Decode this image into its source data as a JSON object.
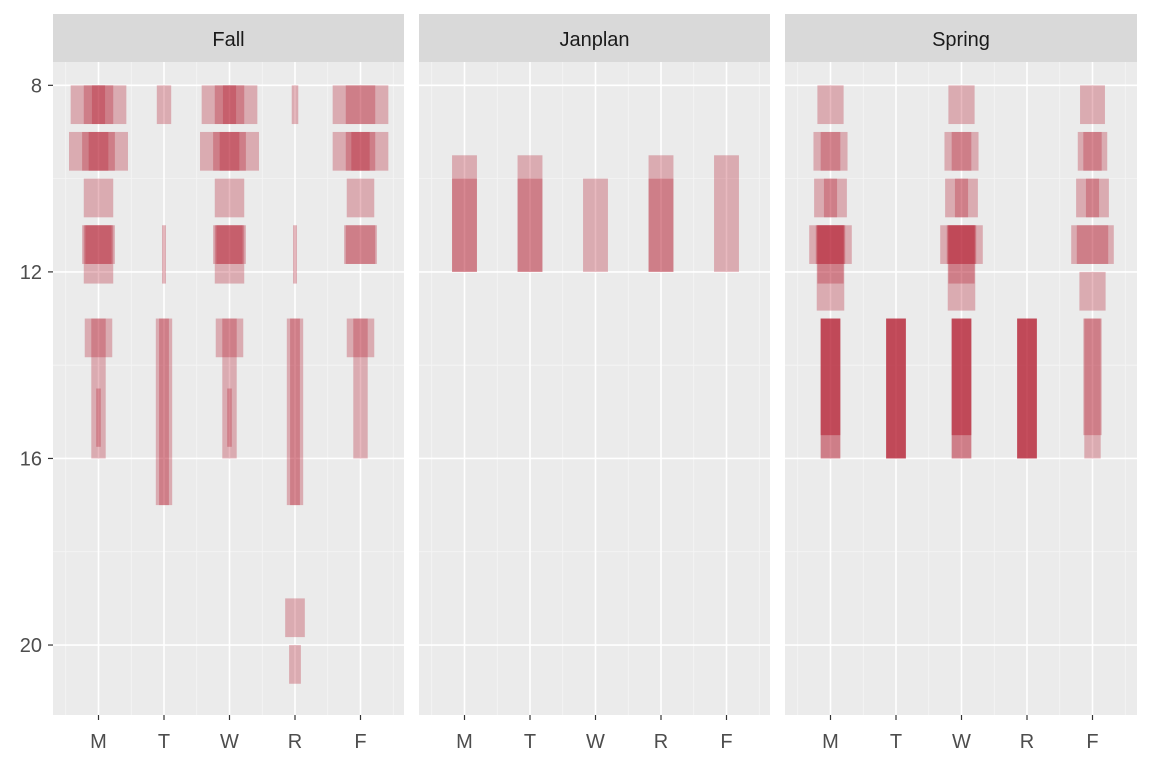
{
  "chart_data": {
    "type": "bar",
    "subtype": "faceted-floating-bar",
    "title": "",
    "xlabel": "",
    "ylabel": "",
    "facets": [
      "Fall",
      "Janplan",
      "Spring"
    ],
    "x_categories": [
      "M",
      "T",
      "W",
      "R",
      "F"
    ],
    "y_ticks": [
      8,
      12,
      16,
      20
    ],
    "y_range": [
      7.5,
      21.5
    ],
    "y_reversed": true,
    "grid": true,
    "legend": "none",
    "bar_color": "#b2182b",
    "bar_opacity": 0.3,
    "panel_background": "#ebebeb",
    "strip_background": "#d9d9d9",
    "series": [
      {
        "facet": "Fall",
        "blocks": [
          {
            "day": "M",
            "start": 8,
            "end": 8.83,
            "width": 0.85
          },
          {
            "day": "M",
            "start": 8,
            "end": 8.83,
            "width": 0.45
          },
          {
            "day": "M",
            "start": 8,
            "end": 8.83,
            "width": 0.2
          },
          {
            "day": "M",
            "start": 9,
            "end": 9.83,
            "width": 0.9
          },
          {
            "day": "M",
            "start": 9,
            "end": 9.83,
            "width": 0.5
          },
          {
            "day": "M",
            "start": 9,
            "end": 9.83,
            "width": 0.3
          },
          {
            "day": "M",
            "start": 10,
            "end": 10.83,
            "width": 0.45
          },
          {
            "day": "M",
            "start": 11,
            "end": 11.83,
            "width": 0.5
          },
          {
            "day": "M",
            "start": 11,
            "end": 11.83,
            "width": 0.4
          },
          {
            "day": "M",
            "start": 11,
            "end": 12.25,
            "width": 0.45
          },
          {
            "day": "M",
            "start": 13,
            "end": 13.83,
            "width": 0.42
          },
          {
            "day": "M",
            "start": 13,
            "end": 16,
            "width": 0.22
          },
          {
            "day": "M",
            "start": 14.5,
            "end": 15.75,
            "width": 0.07
          },
          {
            "day": "T",
            "start": 8,
            "end": 8.83,
            "width": 0.22
          },
          {
            "day": "T",
            "start": 11,
            "end": 12.25,
            "width": 0.06
          },
          {
            "day": "T",
            "start": 13,
            "end": 17,
            "width": 0.25
          },
          {
            "day": "T",
            "start": 13,
            "end": 17,
            "width": 0.15
          },
          {
            "day": "W",
            "start": 8,
            "end": 8.83,
            "width": 0.85
          },
          {
            "day": "W",
            "start": 8,
            "end": 8.83,
            "width": 0.45
          },
          {
            "day": "W",
            "start": 8,
            "end": 8.83,
            "width": 0.2
          },
          {
            "day": "W",
            "start": 9,
            "end": 9.83,
            "width": 0.9
          },
          {
            "day": "W",
            "start": 9,
            "end": 9.83,
            "width": 0.5
          },
          {
            "day": "W",
            "start": 9,
            "end": 9.83,
            "width": 0.3
          },
          {
            "day": "W",
            "start": 10,
            "end": 10.83,
            "width": 0.45
          },
          {
            "day": "W",
            "start": 11,
            "end": 11.83,
            "width": 0.5
          },
          {
            "day": "W",
            "start": 11,
            "end": 11.83,
            "width": 0.4
          },
          {
            "day": "W",
            "start": 11,
            "end": 12.25,
            "width": 0.45
          },
          {
            "day": "W",
            "start": 13,
            "end": 13.83,
            "width": 0.42
          },
          {
            "day": "W",
            "start": 13,
            "end": 16,
            "width": 0.22
          },
          {
            "day": "W",
            "start": 14.5,
            "end": 15.75,
            "width": 0.07
          },
          {
            "day": "R",
            "start": 8,
            "end": 8.83,
            "width": 0.1
          },
          {
            "day": "R",
            "start": 11,
            "end": 12.25,
            "width": 0.06
          },
          {
            "day": "R",
            "start": 13,
            "end": 17,
            "width": 0.25
          },
          {
            "day": "R",
            "start": 13,
            "end": 17,
            "width": 0.15
          },
          {
            "day": "R",
            "start": 19,
            "end": 19.83,
            "width": 0.3
          },
          {
            "day": "R",
            "start": 20,
            "end": 20.83,
            "width": 0.18
          },
          {
            "day": "F",
            "start": 8,
            "end": 8.83,
            "width": 0.85
          },
          {
            "day": "F",
            "start": 8,
            "end": 8.83,
            "width": 0.45
          },
          {
            "day": "F",
            "start": 9,
            "end": 9.83,
            "width": 0.85
          },
          {
            "day": "F",
            "start": 9,
            "end": 9.83,
            "width": 0.45
          },
          {
            "day": "F",
            "start": 9,
            "end": 9.83,
            "width": 0.28
          },
          {
            "day": "F",
            "start": 10,
            "end": 10.83,
            "width": 0.42
          },
          {
            "day": "F",
            "start": 11,
            "end": 11.83,
            "width": 0.5
          },
          {
            "day": "F",
            "start": 11,
            "end": 11.83,
            "width": 0.45
          },
          {
            "day": "F",
            "start": 13,
            "end": 13.83,
            "width": 0.42
          },
          {
            "day": "F",
            "start": 13,
            "end": 16,
            "width": 0.22
          }
        ]
      },
      {
        "facet": "Janplan",
        "blocks": [
          {
            "day": "M",
            "start": 9.5,
            "end": 12,
            "width": 0.38
          },
          {
            "day": "M",
            "start": 10,
            "end": 12,
            "width": 0.38
          },
          {
            "day": "T",
            "start": 9.5,
            "end": 12,
            "width": 0.38
          },
          {
            "day": "T",
            "start": 10,
            "end": 12,
            "width": 0.38
          },
          {
            "day": "W",
            "start": 10,
            "end": 12,
            "width": 0.38
          },
          {
            "day": "R",
            "start": 9.5,
            "end": 12,
            "width": 0.38
          },
          {
            "day": "R",
            "start": 10,
            "end": 12,
            "width": 0.38
          },
          {
            "day": "F",
            "start": 9.5,
            "end": 12,
            "width": 0.38
          }
        ]
      },
      {
        "facet": "Spring",
        "blocks": [
          {
            "day": "M",
            "start": 8,
            "end": 8.83,
            "width": 0.4
          },
          {
            "day": "M",
            "start": 9,
            "end": 9.83,
            "width": 0.52
          },
          {
            "day": "M",
            "start": 9,
            "end": 9.83,
            "width": 0.3
          },
          {
            "day": "M",
            "start": 10,
            "end": 10.83,
            "width": 0.5
          },
          {
            "day": "M",
            "start": 10,
            "end": 10.83,
            "width": 0.2
          },
          {
            "day": "M",
            "start": 11,
            "end": 11.83,
            "width": 0.65
          },
          {
            "day": "M",
            "start": 11,
            "end": 11.83,
            "width": 0.45
          },
          {
            "day": "M",
            "start": 11,
            "end": 12.25,
            "width": 0.4
          },
          {
            "day": "M",
            "start": 11,
            "end": 12.83,
            "width": 0.42
          },
          {
            "day": "M",
            "start": 13,
            "end": 16,
            "width": 0.3
          },
          {
            "day": "M",
            "start": 13,
            "end": 16,
            "width": 0.3
          },
          {
            "day": "M",
            "start": 13,
            "end": 15.5,
            "width": 0.3
          },
          {
            "day": "M",
            "start": 13,
            "end": 15.5,
            "width": 0.3
          },
          {
            "day": "T",
            "start": 13,
            "end": 16,
            "width": 0.3
          },
          {
            "day": "T",
            "start": 13,
            "end": 16,
            "width": 0.3
          },
          {
            "day": "T",
            "start": 13,
            "end": 16,
            "width": 0.3
          },
          {
            "day": "T",
            "start": 13,
            "end": 16,
            "width": 0.3
          },
          {
            "day": "W",
            "start": 8,
            "end": 8.83,
            "width": 0.4
          },
          {
            "day": "W",
            "start": 9,
            "end": 9.83,
            "width": 0.52
          },
          {
            "day": "W",
            "start": 9,
            "end": 9.83,
            "width": 0.3
          },
          {
            "day": "W",
            "start": 10,
            "end": 10.83,
            "width": 0.5
          },
          {
            "day": "W",
            "start": 10,
            "end": 10.83,
            "width": 0.2
          },
          {
            "day": "W",
            "start": 11,
            "end": 11.83,
            "width": 0.65
          },
          {
            "day": "W",
            "start": 11,
            "end": 11.83,
            "width": 0.45
          },
          {
            "day": "W",
            "start": 11,
            "end": 12.25,
            "width": 0.4
          },
          {
            "day": "W",
            "start": 11,
            "end": 12.83,
            "width": 0.42
          },
          {
            "day": "W",
            "start": 13,
            "end": 16,
            "width": 0.3
          },
          {
            "day": "W",
            "start": 13,
            "end": 16,
            "width": 0.3
          },
          {
            "day": "W",
            "start": 13,
            "end": 15.5,
            "width": 0.3
          },
          {
            "day": "W",
            "start": 13,
            "end": 15.5,
            "width": 0.3
          },
          {
            "day": "R",
            "start": 13,
            "end": 16,
            "width": 0.3
          },
          {
            "day": "R",
            "start": 13,
            "end": 16,
            "width": 0.3
          },
          {
            "day": "R",
            "start": 13,
            "end": 16,
            "width": 0.3
          },
          {
            "day": "R",
            "start": 13,
            "end": 16,
            "width": 0.3
          },
          {
            "day": "F",
            "start": 8,
            "end": 8.83,
            "width": 0.38
          },
          {
            "day": "F",
            "start": 9,
            "end": 9.83,
            "width": 0.45
          },
          {
            "day": "F",
            "start": 9,
            "end": 9.83,
            "width": 0.28
          },
          {
            "day": "F",
            "start": 10,
            "end": 10.83,
            "width": 0.5
          },
          {
            "day": "F",
            "start": 10,
            "end": 10.83,
            "width": 0.2
          },
          {
            "day": "F",
            "start": 11,
            "end": 11.83,
            "width": 0.65
          },
          {
            "day": "F",
            "start": 11,
            "end": 11.83,
            "width": 0.48
          },
          {
            "day": "F",
            "start": 12,
            "end": 12.83,
            "width": 0.4
          },
          {
            "day": "F",
            "start": 13,
            "end": 16,
            "width": 0.25
          },
          {
            "day": "F",
            "start": 13,
            "end": 15.5,
            "width": 0.28
          }
        ]
      }
    ]
  }
}
